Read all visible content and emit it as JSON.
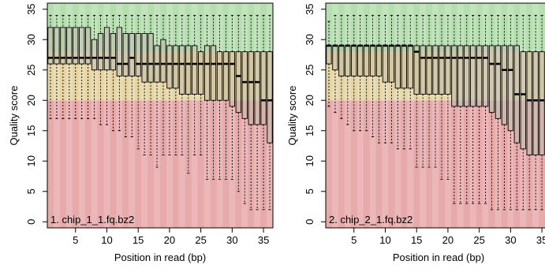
{
  "colors": {
    "good_zone": "#b6dfb0",
    "reasonable_zone": "#e6d6a5",
    "poor_zone": "#e7aaab",
    "box_fill": "#bfbaa5",
    "frame": "#000000"
  },
  "chart_data": [
    {
      "type": "box",
      "panel_label": "1. chip_1_1.fq.bz2",
      "xlabel": "Position in read (bp)",
      "ylabel": "Quality score",
      "xlim": [
        0.5,
        36.5
      ],
      "ylim": [
        -1,
        36
      ],
      "xticks": [
        5,
        10,
        15,
        20,
        25,
        30,
        35
      ],
      "yticks": [
        0,
        5,
        10,
        15,
        20,
        25,
        30,
        35
      ],
      "bands": [
        {
          "from": 28,
          "to": 36,
          "zone": "good"
        },
        {
          "from": 20,
          "to": 28,
          "zone": "reasonable"
        },
        {
          "from": -1,
          "to": 20,
          "zone": "poor"
        }
      ],
      "positions": [
        1,
        2,
        3,
        4,
        5,
        6,
        7,
        8,
        9,
        10,
        11,
        12,
        13,
        14,
        15,
        16,
        17,
        18,
        19,
        20,
        21,
        22,
        23,
        24,
        25,
        26,
        27,
        28,
        29,
        30,
        31,
        32,
        33,
        34,
        35,
        36
      ],
      "whisker_high": [
        34,
        34,
        34,
        34,
        34,
        34,
        34,
        34,
        34,
        34,
        34,
        34,
        34,
        34,
        34,
        34,
        34,
        34,
        34,
        34,
        34,
        34,
        34,
        34,
        34,
        34,
        34,
        34,
        34,
        34,
        34,
        34,
        34,
        34,
        34,
        34
      ],
      "q3": [
        32,
        32,
        32,
        32,
        32,
        32,
        32,
        30,
        31,
        32,
        31,
        32,
        31,
        31,
        31,
        31,
        31,
        29,
        30,
        29,
        29,
        29,
        29,
        29,
        28,
        29,
        29,
        28,
        28,
        28,
        28,
        28,
        28,
        28,
        28,
        28
      ],
      "median": [
        27,
        27,
        27,
        27,
        27,
        27,
        27,
        27,
        27,
        27,
        27,
        26,
        26,
        27,
        26,
        26,
        26,
        26,
        26,
        26,
        26,
        26,
        26,
        26,
        26,
        26,
        26,
        26,
        26,
        26,
        24,
        23,
        23,
        23,
        20,
        20
      ],
      "q1": [
        26,
        26,
        26,
        26,
        26,
        26,
        26,
        25,
        25,
        25,
        25,
        24,
        24,
        24,
        24,
        23,
        23,
        23,
        23,
        22,
        22,
        21,
        21,
        21,
        21,
        20,
        20,
        20,
        20,
        19,
        18,
        17,
        16,
        16,
        16,
        13
      ],
      "whisker_low": [
        17,
        17,
        17,
        17,
        17,
        17,
        17,
        17,
        16,
        16,
        15,
        15,
        14,
        14,
        12,
        11,
        11,
        9,
        11,
        11,
        11,
        11,
        8,
        11,
        11,
        7,
        7,
        7,
        7,
        7,
        5,
        3,
        2,
        2,
        2,
        2
      ]
    },
    {
      "type": "box",
      "panel_label": "2. chip_2_1.fq.bz2",
      "xlabel": "Position in read (bp)",
      "ylabel": "Quality score",
      "xlim": [
        0.5,
        36.5
      ],
      "ylim": [
        -1,
        36
      ],
      "xticks": [
        5,
        10,
        15,
        20,
        25,
        30,
        35
      ],
      "yticks": [
        0,
        5,
        10,
        15,
        20,
        25,
        30,
        35
      ],
      "bands": [
        {
          "from": 28,
          "to": 36,
          "zone": "good"
        },
        {
          "from": 20,
          "to": 28,
          "zone": "reasonable"
        },
        {
          "from": -1,
          "to": 20,
          "zone": "poor"
        }
      ],
      "positions": [
        1,
        2,
        3,
        4,
        5,
        6,
        7,
        8,
        9,
        10,
        11,
        12,
        13,
        14,
        15,
        16,
        17,
        18,
        19,
        20,
        21,
        22,
        23,
        24,
        25,
        26,
        27,
        28,
        29,
        30,
        31,
        32,
        33,
        34,
        35,
        36
      ],
      "whisker_high": [
        33,
        34,
        34,
        34,
        34,
        34,
        34,
        34,
        34,
        34,
        34,
        34,
        34,
        34,
        34,
        34,
        34,
        34,
        34,
        34,
        34,
        34,
        34,
        34,
        34,
        34,
        34,
        34,
        34,
        34,
        34,
        34,
        34,
        34,
        34,
        34
      ],
      "q3": [
        29,
        29,
        29,
        29,
        29,
        29,
        29,
        29,
        29,
        29,
        29,
        29,
        29,
        29,
        29,
        29,
        29,
        29,
        29,
        29,
        29,
        29,
        29,
        29,
        29,
        29,
        29,
        29,
        29,
        29,
        29,
        28,
        28,
        28,
        28,
        28
      ],
      "median": [
        29,
        29,
        29,
        29,
        29,
        29,
        29,
        29,
        29,
        29,
        29,
        29,
        29,
        29,
        28,
        27,
        27,
        27,
        27,
        27,
        27,
        27,
        27,
        27,
        27,
        27,
        26,
        26,
        25,
        25,
        21,
        21,
        20,
        20,
        20,
        20
      ],
      "q1": [
        26,
        25,
        24,
        24,
        24,
        24,
        24,
        24,
        24,
        23,
        23,
        22,
        22,
        22,
        21,
        21,
        21,
        21,
        21,
        21,
        19,
        19,
        19,
        19,
        19,
        19,
        18,
        17,
        16,
        15,
        13,
        12,
        11,
        11,
        11,
        11
      ],
      "whisker_low": [
        19,
        18,
        17,
        16,
        15,
        15,
        15,
        14,
        13,
        13,
        13,
        12,
        12,
        12,
        9,
        9,
        9,
        9,
        7,
        7,
        3,
        3,
        3,
        3,
        3,
        3,
        2,
        2,
        2,
        2,
        2,
        2,
        2,
        2,
        2,
        2
      ]
    }
  ]
}
